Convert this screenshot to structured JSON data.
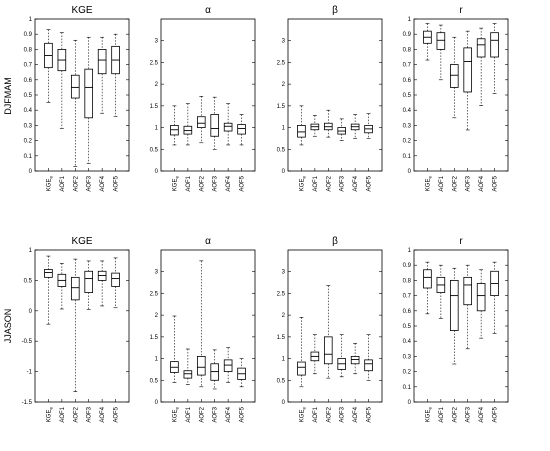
{
  "figure": {
    "row_labels": [
      "DJFMAM",
      "JJASON"
    ]
  },
  "chart_data": [
    {
      "type": "box",
      "row": "DJFMAM",
      "title": "KGE",
      "categories": [
        "KGE",
        "AOF1",
        "AOF2",
        "AOF3",
        "AOF4",
        "AOF5"
      ],
      "first_category_subscript": "e",
      "ylim": [
        0,
        1
      ],
      "yticks": [
        "0",
        "0.1",
        "0.2",
        "0.3",
        "0.4",
        "0.5",
        "0.6",
        "0.7",
        "0.8",
        "0.9",
        "1"
      ],
      "boxes": [
        {
          "min": 0.45,
          "q1": 0.68,
          "median": 0.76,
          "q3": 0.84,
          "max": 0.93
        },
        {
          "min": 0.28,
          "q1": 0.66,
          "median": 0.73,
          "q3": 0.8,
          "max": 0.91
        },
        {
          "min": 0.03,
          "q1": 0.48,
          "median": 0.55,
          "q3": 0.63,
          "max": 0.86
        },
        {
          "min": 0.05,
          "q1": 0.35,
          "median": 0.55,
          "q3": 0.67,
          "max": 0.88
        },
        {
          "min": 0.38,
          "q1": 0.64,
          "median": 0.73,
          "q3": 0.8,
          "max": 0.88
        },
        {
          "min": 0.36,
          "q1": 0.64,
          "median": 0.73,
          "q3": 0.82,
          "max": 0.9
        }
      ]
    },
    {
      "type": "box",
      "row": "DJFMAM",
      "title": "α",
      "categories": [
        "KGE",
        "AOF1",
        "AOF2",
        "AOF3",
        "AOF4",
        "AOF5"
      ],
      "first_category_subscript": "e",
      "ylim": [
        0,
        3.5
      ],
      "yticks": [
        "0",
        "0.5",
        "1",
        "1.5",
        "2",
        "2.5",
        "3"
      ],
      "boxes": [
        {
          "min": 0.6,
          "q1": 0.83,
          "median": 0.95,
          "q3": 1.05,
          "max": 1.5
        },
        {
          "min": 0.6,
          "q1": 0.85,
          "median": 0.93,
          "q3": 1.03,
          "max": 1.55
        },
        {
          "min": 0.65,
          "q1": 1.0,
          "median": 1.1,
          "q3": 1.25,
          "max": 1.72
        },
        {
          "min": 0.5,
          "q1": 0.8,
          "median": 0.98,
          "q3": 1.3,
          "max": 1.7
        },
        {
          "min": 0.6,
          "q1": 0.92,
          "median": 1.03,
          "q3": 1.1,
          "max": 1.55
        },
        {
          "min": 0.6,
          "q1": 0.85,
          "median": 0.98,
          "q3": 1.07,
          "max": 1.3
        }
      ]
    },
    {
      "type": "box",
      "row": "DJFMAM",
      "title": "β",
      "categories": [
        "KGE",
        "AOF1",
        "AOF2",
        "AOF3",
        "AOF4",
        "AOF5"
      ],
      "first_category_subscript": "e",
      "ylim": [
        0,
        3.5
      ],
      "yticks": [
        "0",
        "0.5",
        "1",
        "1.5",
        "2",
        "2.5",
        "3"
      ],
      "boxes": [
        {
          "min": 0.6,
          "q1": 0.78,
          "median": 0.9,
          "q3": 1.05,
          "max": 1.5
        },
        {
          "min": 0.8,
          "q1": 0.95,
          "median": 1.02,
          "q3": 1.08,
          "max": 1.28
        },
        {
          "min": 0.78,
          "q1": 0.95,
          "median": 1.02,
          "q3": 1.1,
          "max": 1.4
        },
        {
          "min": 0.7,
          "q1": 0.85,
          "median": 0.92,
          "q3": 1.0,
          "max": 1.2
        },
        {
          "min": 0.75,
          "q1": 0.95,
          "median": 1.02,
          "q3": 1.08,
          "max": 1.3
        },
        {
          "min": 0.75,
          "q1": 0.88,
          "median": 0.97,
          "q3": 1.05,
          "max": 1.32
        }
      ]
    },
    {
      "type": "box",
      "row": "DJFMAM",
      "title": "r",
      "categories": [
        "KGE",
        "AOF1",
        "AOF2",
        "AOF3",
        "AOF4",
        "AOF5"
      ],
      "first_category_subscript": "e",
      "ylim": [
        0,
        1
      ],
      "yticks": [
        "0",
        "0.1",
        "0.2",
        "0.3",
        "0.4",
        "0.5",
        "0.6",
        "0.7",
        "0.8",
        "0.9",
        "1"
      ],
      "boxes": [
        {
          "min": 0.73,
          "q1": 0.84,
          "median": 0.88,
          "q3": 0.92,
          "max": 0.97
        },
        {
          "min": 0.6,
          "q1": 0.8,
          "median": 0.86,
          "q3": 0.91,
          "max": 0.96
        },
        {
          "min": 0.35,
          "q1": 0.55,
          "median": 0.63,
          "q3": 0.7,
          "max": 0.88
        },
        {
          "min": 0.27,
          "q1": 0.52,
          "median": 0.72,
          "q3": 0.81,
          "max": 0.92
        },
        {
          "min": 0.43,
          "q1": 0.75,
          "median": 0.83,
          "q3": 0.87,
          "max": 0.94
        },
        {
          "min": 0.51,
          "q1": 0.75,
          "median": 0.86,
          "q3": 0.91,
          "max": 0.97
        }
      ]
    },
    {
      "type": "box",
      "row": "JJASON",
      "title": "KGE",
      "categories": [
        "KGE",
        "AOF1",
        "AOF2",
        "AOF3",
        "AOF4",
        "AOF5"
      ],
      "first_category_subscript": "e",
      "ylim": [
        -1.5,
        1
      ],
      "yticks": [
        "-1.5",
        "-1",
        "-0.5",
        "0",
        "0.5",
        "1"
      ],
      "boxes": [
        {
          "min": -0.22,
          "q1": 0.55,
          "median": 0.63,
          "q3": 0.68,
          "max": 0.9
        },
        {
          "min": 0.03,
          "q1": 0.4,
          "median": 0.5,
          "q3": 0.6,
          "max": 0.78
        },
        {
          "min": -1.33,
          "q1": 0.18,
          "median": 0.38,
          "q3": 0.55,
          "max": 0.85
        },
        {
          "min": 0.02,
          "q1": 0.3,
          "median": 0.53,
          "q3": 0.65,
          "max": 0.82
        },
        {
          "min": 0.08,
          "q1": 0.5,
          "median": 0.58,
          "q3": 0.65,
          "max": 0.82
        },
        {
          "min": 0.05,
          "q1": 0.4,
          "median": 0.53,
          "q3": 0.62,
          "max": 0.87
        }
      ]
    },
    {
      "type": "box",
      "row": "JJASON",
      "title": "α",
      "categories": [
        "KGE",
        "AOF1",
        "AOF2",
        "AOF3",
        "AOF4",
        "AOF5"
      ],
      "first_category_subscript": "e",
      "ylim": [
        0,
        3.5
      ],
      "yticks": [
        "0",
        "0.5",
        "1",
        "1.5",
        "2",
        "2.5",
        "3"
      ],
      "boxes": [
        {
          "min": 0.45,
          "q1": 0.68,
          "median": 0.8,
          "q3": 0.93,
          "max": 1.98
        },
        {
          "min": 0.4,
          "q1": 0.55,
          "median": 0.65,
          "q3": 0.72,
          "max": 1.22
        },
        {
          "min": 0.35,
          "q1": 0.62,
          "median": 0.8,
          "q3": 1.05,
          "max": 3.25
        },
        {
          "min": 0.3,
          "q1": 0.5,
          "median": 0.7,
          "q3": 0.88,
          "max": 1.2
        },
        {
          "min": 0.45,
          "q1": 0.7,
          "median": 0.85,
          "q3": 0.97,
          "max": 1.25
        },
        {
          "min": 0.35,
          "q1": 0.52,
          "median": 0.65,
          "q3": 0.78,
          "max": 1.0
        }
      ]
    },
    {
      "type": "box",
      "row": "JJASON",
      "title": "β",
      "categories": [
        "KGE",
        "AOF1",
        "AOF2",
        "AOF3",
        "AOF4",
        "AOF5"
      ],
      "first_category_subscript": "e",
      "ylim": [
        0,
        3.5
      ],
      "yticks": [
        "0",
        "0.5",
        "1",
        "1.5",
        "2",
        "2.5",
        "3"
      ],
      "boxes": [
        {
          "min": 0.35,
          "q1": 0.62,
          "median": 0.8,
          "q3": 0.92,
          "max": 1.95
        },
        {
          "min": 0.65,
          "q1": 0.95,
          "median": 1.05,
          "q3": 1.15,
          "max": 1.55
        },
        {
          "min": 0.55,
          "q1": 0.88,
          "median": 1.1,
          "q3": 1.5,
          "max": 2.68
        },
        {
          "min": 0.58,
          "q1": 0.75,
          "median": 0.88,
          "q3": 1.0,
          "max": 1.55
        },
        {
          "min": 0.65,
          "q1": 0.88,
          "median": 0.98,
          "q3": 1.05,
          "max": 1.35
        },
        {
          "min": 0.5,
          "q1": 0.72,
          "median": 0.88,
          "q3": 0.97,
          "max": 1.55
        }
      ]
    },
    {
      "type": "box",
      "row": "JJASON",
      "title": "r",
      "categories": [
        "KGE",
        "AOF1",
        "AOF2",
        "AOF3",
        "AOF4",
        "AOF5"
      ],
      "first_category_subscript": "e",
      "ylim": [
        0,
        1
      ],
      "yticks": [
        "0",
        "0.1",
        "0.2",
        "0.3",
        "0.4",
        "0.5",
        "0.6",
        "0.7",
        "0.8",
        "0.9",
        "1"
      ],
      "boxes": [
        {
          "min": 0.58,
          "q1": 0.75,
          "median": 0.82,
          "q3": 0.87,
          "max": 0.92
        },
        {
          "min": 0.55,
          "q1": 0.72,
          "median": 0.77,
          "q3": 0.82,
          "max": 0.9
        },
        {
          "min": 0.25,
          "q1": 0.47,
          "median": 0.7,
          "q3": 0.8,
          "max": 0.88
        },
        {
          "min": 0.35,
          "q1": 0.64,
          "median": 0.77,
          "q3": 0.82,
          "max": 0.9
        },
        {
          "min": 0.42,
          "q1": 0.6,
          "median": 0.7,
          "q3": 0.78,
          "max": 0.87
        },
        {
          "min": 0.45,
          "q1": 0.7,
          "median": 0.78,
          "q3": 0.86,
          "max": 0.92
        }
      ]
    }
  ]
}
